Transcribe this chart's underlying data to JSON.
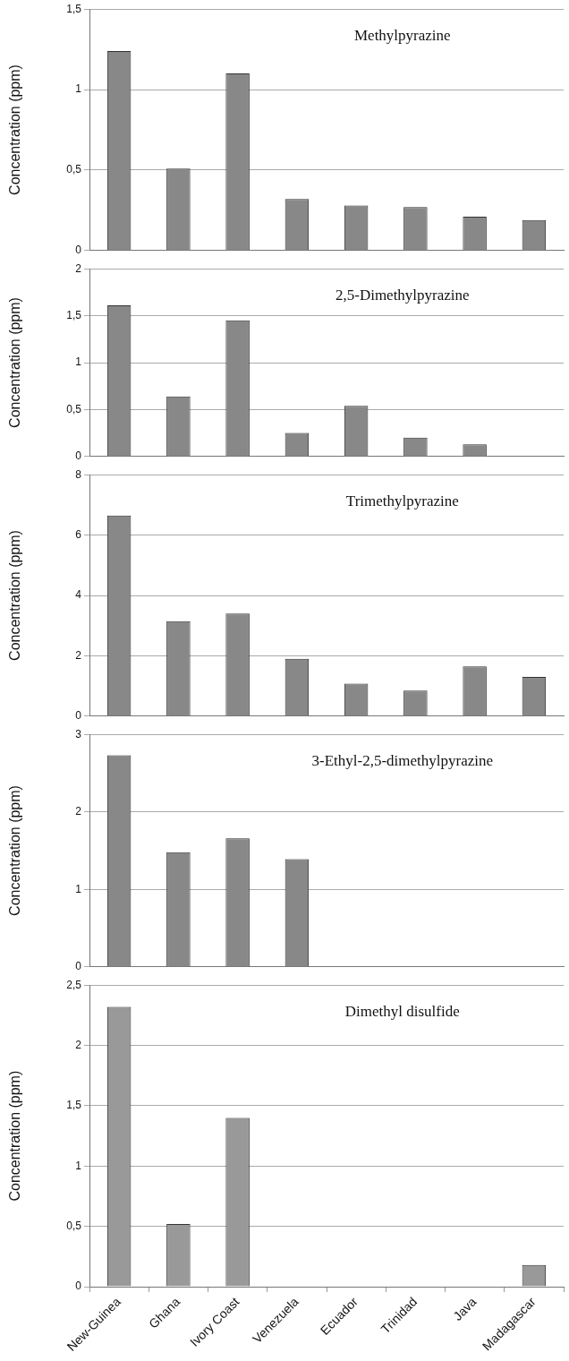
{
  "chart_data": [
    {
      "type": "bar",
      "title": "Methylpyrazine",
      "ylabel": "Concentration (ppm)",
      "categories": [
        null,
        null,
        null,
        null,
        null,
        null,
        null,
        null
      ],
      "values": [
        1.24,
        0.51,
        1.1,
        0.32,
        0.28,
        0.27,
        0.21,
        0.19
      ],
      "color": "#888888",
      "ylim": [
        0,
        1.5
      ],
      "yticks": [
        0,
        {
          "value": 0.5,
          "label": "0,5"
        },
        1,
        {
          "value": 1.5,
          "label": "1,5"
        }
      ],
      "grid": "y",
      "tick_labels": "y"
    },
    {
      "type": "bar",
      "title": "2,5-Dimethylpyrazine",
      "ylabel": "Concentration (ppm)",
      "categories": [
        null,
        null,
        null,
        null,
        null,
        null,
        null,
        null
      ],
      "values": [
        1.61,
        0.64,
        1.45,
        0.25,
        0.54,
        0.2,
        0.13,
        null
      ],
      "color": "#888888",
      "ylim": [
        0,
        2
      ],
      "yticks": [
        0,
        {
          "value": 0.5,
          "label": "0,5"
        },
        1,
        {
          "value": 1.5,
          "label": "1,5"
        },
        2
      ],
      "grid": "y",
      "tick_labels": "y"
    },
    {
      "type": "bar",
      "title": "Trimethylpyrazine",
      "ylabel": "Concentration (ppm)",
      "categories": [
        null,
        null,
        null,
        null,
        null,
        null,
        null,
        null
      ],
      "values": [
        6.65,
        3.15,
        3.4,
        1.9,
        1.08,
        0.85,
        1.65,
        1.3
      ],
      "color": "#888888",
      "ylim": [
        0,
        8
      ],
      "yticks": [
        0,
        2,
        4,
        6,
        8
      ],
      "grid": "y",
      "tick_labels": "y"
    },
    {
      "type": "bar",
      "title": "3-Ethyl-2,5-dimethylpyrazine",
      "ylabel": "Concentration (ppm)",
      "categories": [
        null,
        null,
        null,
        null,
        null,
        null,
        null,
        null
      ],
      "values": [
        2.73,
        1.48,
        1.66,
        1.39,
        null,
        null,
        null,
        null
      ],
      "color": "#888888",
      "ylim": [
        0,
        3
      ],
      "yticks": [
        0,
        1,
        2,
        3
      ],
      "grid": "y",
      "tick_labels": "y"
    },
    {
      "type": "bar",
      "title": "Dimethyl disulfide",
      "ylabel": "Concentration (ppm)",
      "categories": [
        "New-Guinea",
        "Ghana",
        "Ivory Coast",
        "Venezuela",
        "Ecuador",
        "Trinidad",
        "Java",
        "Madagascar"
      ],
      "values": [
        2.32,
        0.52,
        1.4,
        null,
        null,
        null,
        null,
        0.18
      ],
      "color": "#999999",
      "ylim": [
        0,
        2.5
      ],
      "yticks": [
        0,
        {
          "value": 0.5,
          "label": "0,5"
        },
        1,
        {
          "value": 1.5,
          "label": "1,5"
        },
        2,
        {
          "value": 2.5,
          "label": "2,5"
        }
      ],
      "grid": "y"
    }
  ]
}
